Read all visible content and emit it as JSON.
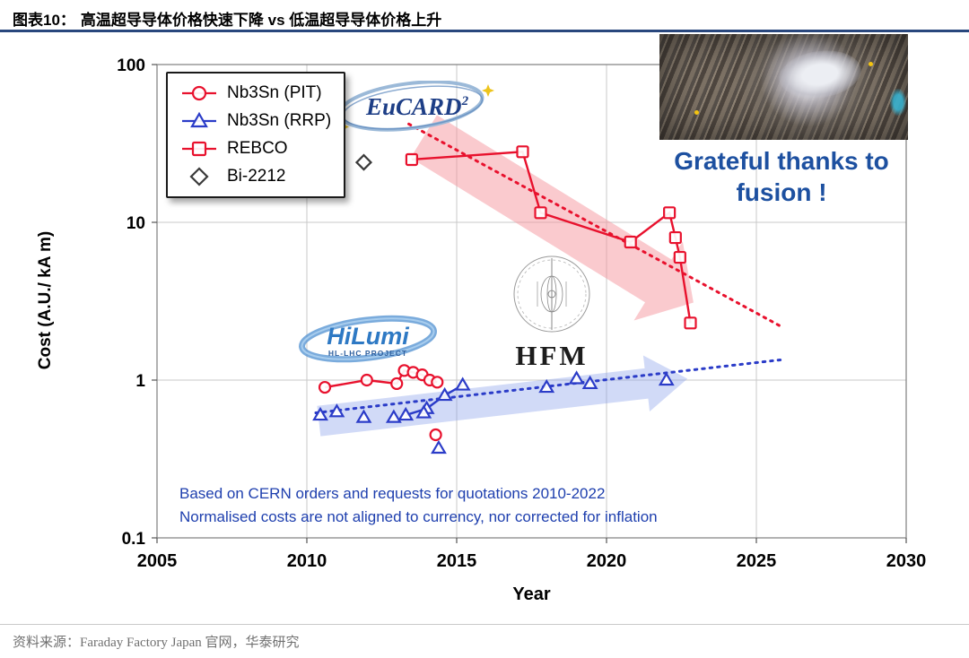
{
  "header": {
    "tag": "图表10：",
    "title": "高温超导导体价格快速下降 vs 低温超导导体价格上升"
  },
  "footer": {
    "source": "资料来源：Faraday Factory Japan 官网，华泰研究"
  },
  "logos": {
    "eucard": "EuCARD",
    "eucard_sup": "2",
    "hilumi": "HiLumi",
    "hilumi_sub": "HL-LHC PROJECT",
    "hfm": "HFM"
  },
  "thanks": {
    "line1": "Grateful thanks to",
    "line2": "fusion !"
  },
  "chart_data": {
    "type": "scatter",
    "title": "",
    "xlabel": "Year",
    "ylabel": "Cost (A.U./ kA m)",
    "x_ticks": [
      2005,
      2010,
      2015,
      2020,
      2025,
      2030
    ],
    "y_ticks": [
      0.1,
      1,
      10,
      100
    ],
    "xlim": [
      2005,
      2030
    ],
    "ylim": [
      0.1,
      100
    ],
    "y_scale": "log",
    "grid": true,
    "legend_position": "upper-left",
    "annotations": {
      "line1": "Based on CERN orders and requests for quotations 2010-2022",
      "line2": "Normalised costs are not aligned to currency, nor corrected for inflation"
    },
    "series": [
      {
        "name": "Nb3Sn (PIT)",
        "marker": "circle",
        "color": "#e8112d",
        "legend_line": true,
        "line_points": [
          [
            2010.6,
            0.9
          ],
          [
            2012.0,
            1.0
          ],
          [
            2013.0,
            0.95
          ],
          [
            2013.25,
            1.15
          ],
          [
            2013.55,
            1.12
          ],
          [
            2013.85,
            1.08
          ],
          [
            2014.1,
            1.0
          ],
          [
            2014.35,
            0.97
          ]
        ],
        "scatter_points": [
          [
            2014.3,
            0.45
          ]
        ]
      },
      {
        "name": "Nb3Sn (RRP)",
        "marker": "triangle",
        "color": "#2b3cc8",
        "legend_line": true,
        "line_points": [
          [
            2013.3,
            0.6
          ],
          [
            2014.0,
            0.66
          ],
          [
            2014.6,
            0.8
          ],
          [
            2015.2,
            0.93
          ]
        ],
        "scatter_points": [
          [
            2010.45,
            0.6
          ],
          [
            2011.0,
            0.63
          ],
          [
            2011.9,
            0.58
          ],
          [
            2012.9,
            0.58
          ],
          [
            2013.9,
            0.62
          ],
          [
            2018.0,
            0.9
          ],
          [
            2019.0,
            1.02
          ],
          [
            2019.45,
            0.95
          ],
          [
            2022.0,
            1.0
          ],
          [
            2014.4,
            0.37
          ]
        ]
      },
      {
        "name": "REBCO",
        "marker": "square",
        "color": "#e8112d",
        "legend_line": true,
        "line_points": [
          [
            2013.5,
            25
          ],
          [
            2017.2,
            28
          ],
          [
            2017.8,
            11.5
          ],
          [
            2020.8,
            7.5
          ],
          [
            2022.1,
            11.5
          ],
          [
            2022.3,
            8
          ],
          [
            2022.45,
            6
          ],
          [
            2022.8,
            2.3
          ]
        ],
        "scatter_points": []
      },
      {
        "name": "Bi-2212",
        "marker": "diamond",
        "color": "#3a3a3a",
        "legend_line": false,
        "line_points": [],
        "scatter_points": [
          [
            2011.9,
            24
          ]
        ]
      }
    ],
    "trend_lines": [
      {
        "color": "#e8112d",
        "from": [
          2013.4,
          42
        ],
        "to": [
          2025.8,
          2.2
        ]
      },
      {
        "color": "#2b3cc8",
        "from": [
          2010.3,
          0.62
        ],
        "to": [
          2025.9,
          1.35
        ]
      }
    ],
    "bands": [
      {
        "color": "rgba(246,150,158,0.5)",
        "from": [
          2013.9,
          35
        ],
        "to": [
          2022.9,
          3.1
        ],
        "width": 56,
        "arrow": true
      },
      {
        "color": "rgba(133,158,234,0.38)",
        "from": [
          2010.4,
          0.55
        ],
        "to": [
          2022.7,
          1.02
        ],
        "width": 34,
        "arrow": true
      }
    ]
  }
}
